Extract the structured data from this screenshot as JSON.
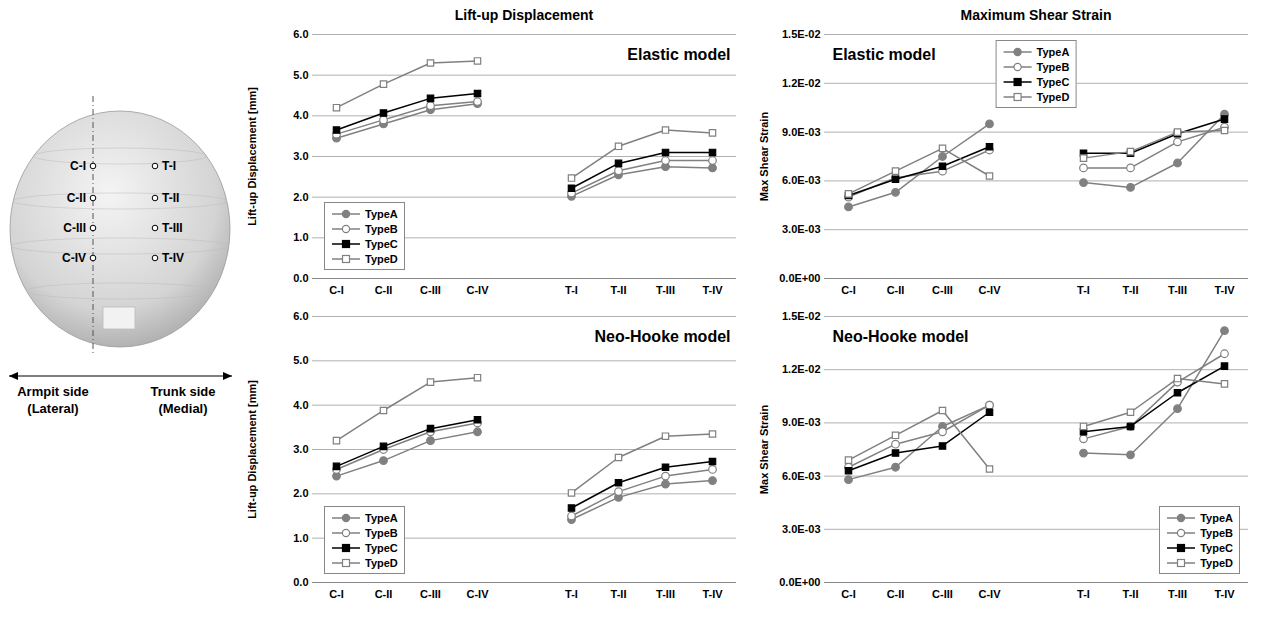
{
  "diagram": {
    "points": {
      "C": [
        "C-I",
        "C-II",
        "C-III",
        "C-IV"
      ],
      "T": [
        "T-I",
        "T-II",
        "T-III",
        "T-IV"
      ]
    },
    "left_label": [
      "Armpit side",
      "(Lateral)"
    ],
    "right_label": [
      "Trunk side",
      "(Medial)"
    ]
  },
  "chart_data": [
    {
      "type": "line",
      "title": "Lift-up Displacement",
      "annotation": "Elastic model",
      "y_label": "Lift-up Displacement [mm]",
      "categories": [
        "C-I",
        "C-II",
        "C-III",
        "C-IV",
        null,
        "T-I",
        "T-II",
        "T-III",
        "T-IV"
      ],
      "series": [
        {
          "name": "TypeA",
          "color": "#808080",
          "marker": "filled_circle",
          "values": [
            3.45,
            3.8,
            4.15,
            4.3,
            null,
            2.02,
            2.55,
            2.75,
            2.72
          ]
        },
        {
          "name": "TypeB",
          "color": "#808080",
          "marker": "open_circle",
          "values": [
            3.55,
            3.9,
            4.25,
            4.35,
            null,
            2.1,
            2.65,
            2.9,
            2.9
          ]
        },
        {
          "name": "TypeC",
          "color": "#000000",
          "marker": "filled_square",
          "values": [
            3.65,
            4.07,
            4.43,
            4.55,
            null,
            2.22,
            2.83,
            3.1,
            3.1
          ]
        },
        {
          "name": "TypeD",
          "color": "#808080",
          "marker": "open_square",
          "values": [
            4.2,
            4.78,
            5.3,
            5.35,
            null,
            2.47,
            3.25,
            3.65,
            3.58
          ]
        }
      ],
      "ylim": [
        0,
        6
      ],
      "yticks": [
        {
          "value": 0,
          "label": "0.0"
        },
        {
          "value": 1,
          "label": "1.0"
        },
        {
          "value": 2,
          "label": "2.0"
        },
        {
          "value": 3,
          "label": "3.0"
        },
        {
          "value": 4,
          "label": "4.0"
        },
        {
          "value": 5,
          "label": "5.0"
        },
        {
          "value": 6,
          "label": "6.0"
        }
      ],
      "grid": true,
      "legend": "lower left"
    },
    {
      "type": "line",
      "title": "Maximum Shear Strain",
      "annotation": "Elastic model",
      "y_label": "Max Shear Strain",
      "categories": [
        "C-I",
        "C-II",
        "C-III",
        "C-IV",
        null,
        "T-I",
        "T-II",
        "T-III",
        "T-IV"
      ],
      "series": [
        {
          "name": "TypeA",
          "color": "#808080",
          "marker": "filled_circle",
          "values": [
            0.0044,
            0.0053,
            0.0075,
            0.0095,
            null,
            0.0059,
            0.0056,
            0.0071,
            0.0101
          ]
        },
        {
          "name": "TypeB",
          "color": "#808080",
          "marker": "open_circle",
          "values": [
            0.005,
            0.0062,
            0.0066,
            0.0079,
            null,
            0.0068,
            0.0068,
            0.0084,
            0.0093
          ]
        },
        {
          "name": "TypeC",
          "color": "#000000",
          "marker": "filled_square",
          "values": [
            0.0051,
            0.0061,
            0.0069,
            0.0081,
            null,
            0.0077,
            0.0077,
            0.0089,
            0.0098
          ]
        },
        {
          "name": "TypeD",
          "color": "#808080",
          "marker": "open_square",
          "values": [
            0.0052,
            0.0066,
            0.008,
            0.0063,
            null,
            0.0074,
            0.0078,
            0.009,
            0.0091
          ]
        }
      ],
      "ylim": [
        0,
        0.015
      ],
      "yticks": [
        {
          "value": 0,
          "label": "0.0E+00"
        },
        {
          "value": 0.003,
          "label": "3.0E-03"
        },
        {
          "value": 0.006,
          "label": "6.0E-03"
        },
        {
          "value": 0.009,
          "label": "9.0E-03"
        },
        {
          "value": 0.012,
          "label": "1.2E-02"
        },
        {
          "value": 0.015,
          "label": "1.5E-02"
        }
      ],
      "grid": true,
      "legend": "upper center"
    },
    {
      "type": "line",
      "annotation": "Neo-Hooke model",
      "y_label": "Lift-up Displacement [mm]",
      "categories": [
        "C-I",
        "C-II",
        "C-III",
        "C-IV",
        null,
        "T-I",
        "T-II",
        "T-III",
        "T-IV"
      ],
      "series": [
        {
          "name": "TypeA",
          "color": "#808080",
          "marker": "filled_circle",
          "values": [
            2.4,
            2.75,
            3.2,
            3.4,
            null,
            1.42,
            1.92,
            2.22,
            2.3
          ]
        },
        {
          "name": "TypeB",
          "color": "#808080",
          "marker": "open_circle",
          "values": [
            2.55,
            3.0,
            3.4,
            3.6,
            null,
            1.5,
            2.05,
            2.4,
            2.55
          ]
        },
        {
          "name": "TypeC",
          "color": "#000000",
          "marker": "filled_square",
          "values": [
            2.62,
            3.07,
            3.47,
            3.67,
            null,
            1.68,
            2.25,
            2.6,
            2.73
          ]
        },
        {
          "name": "TypeD",
          "color": "#808080",
          "marker": "open_square",
          "values": [
            3.2,
            3.88,
            4.52,
            4.62,
            null,
            2.02,
            2.82,
            3.3,
            3.35
          ]
        }
      ],
      "ylim": [
        0,
        6
      ],
      "yticks": [
        {
          "value": 0,
          "label": "0.0"
        },
        {
          "value": 1,
          "label": "1.0"
        },
        {
          "value": 2,
          "label": "2.0"
        },
        {
          "value": 3,
          "label": "3.0"
        },
        {
          "value": 4,
          "label": "4.0"
        },
        {
          "value": 5,
          "label": "5.0"
        },
        {
          "value": 6,
          "label": "6.0"
        }
      ],
      "grid": true,
      "legend": "lower left"
    },
    {
      "type": "line",
      "annotation": "Neo-Hooke model",
      "y_label": "Max Shear Strain",
      "categories": [
        "C-I",
        "C-II",
        "C-III",
        "C-IV",
        null,
        "T-I",
        "T-II",
        "T-III",
        "T-IV"
      ],
      "series": [
        {
          "name": "TypeA",
          "color": "#808080",
          "marker": "filled_circle",
          "values": [
            0.0058,
            0.0065,
            0.0088,
            0.01,
            null,
            0.0073,
            0.0072,
            0.0098,
            0.0142
          ]
        },
        {
          "name": "TypeB",
          "color": "#808080",
          "marker": "open_circle",
          "values": [
            0.0065,
            0.0078,
            0.0085,
            0.01,
            null,
            0.0081,
            0.0088,
            0.0113,
            0.0129
          ]
        },
        {
          "name": "TypeC",
          "color": "#000000",
          "marker": "filled_square",
          "values": [
            0.0063,
            0.0073,
            0.0077,
            0.0096,
            null,
            0.0085,
            0.0088,
            0.0107,
            0.0122
          ]
        },
        {
          "name": "TypeD",
          "color": "#808080",
          "marker": "open_square",
          "values": [
            0.0069,
            0.0083,
            0.0097,
            0.0064,
            null,
            0.0088,
            0.0096,
            0.0115,
            0.0112
          ]
        }
      ],
      "ylim": [
        0,
        0.015
      ],
      "yticks": [
        {
          "value": 0,
          "label": "0.0E+00"
        },
        {
          "value": 0.003,
          "label": "3.0E-03"
        },
        {
          "value": 0.006,
          "label": "6.0E-03"
        },
        {
          "value": 0.009,
          "label": "9.0E-03"
        },
        {
          "value": 0.012,
          "label": "1.2E-02"
        },
        {
          "value": 0.015,
          "label": "1.5E-02"
        }
      ],
      "grid": true,
      "legend": "lower right"
    }
  ]
}
